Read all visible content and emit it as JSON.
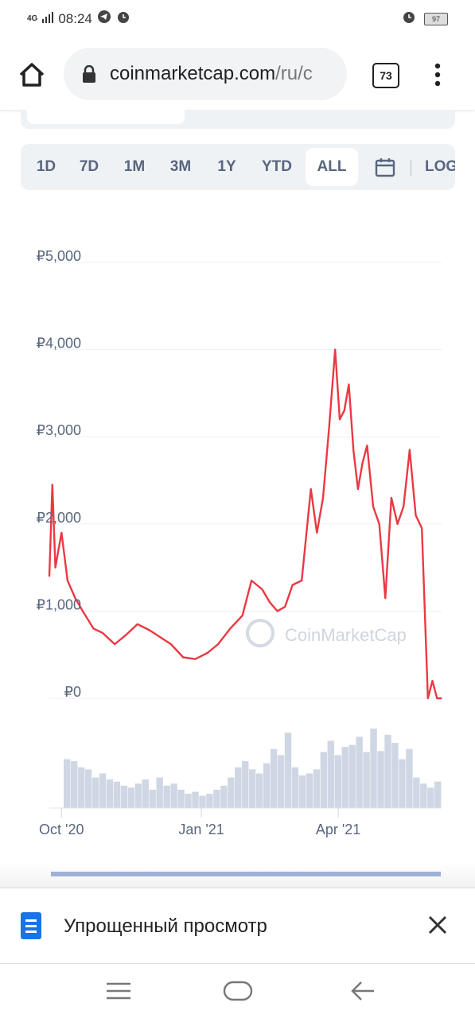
{
  "status_bar": {
    "network": "4G",
    "time": "08:24",
    "battery": "97"
  },
  "browser": {
    "url_main": "coinmarketcap.com",
    "url_path": "/ru/c",
    "tab_count": "73"
  },
  "range_buttons": [
    "1D",
    "7D",
    "1M",
    "3M",
    "1Y",
    "YTD",
    "ALL",
    "LOG"
  ],
  "active_range": "ALL",
  "watermark": "CoinMarketCap",
  "chart_data": {
    "type": "line",
    "y_ticks": [
      "₽5,000",
      "₽4,000",
      "₽3,000",
      "₽2,000",
      "₽1,000",
      "₽0"
    ],
    "x_ticks": [
      "Oct '20",
      "Jan '21",
      "Apr '21"
    ],
    "ylim": [
      0,
      5000
    ],
    "color": "#ea3943",
    "volume_color": "#cfd6e4",
    "series": [
      {
        "x": [
          "2020-09-23",
          "2020-09-25",
          "2020-09-27",
          "2020-10-01",
          "2020-10-05",
          "2020-10-10",
          "2020-10-15",
          "2020-10-22",
          "2020-10-28",
          "2020-11-05",
          "2020-11-12",
          "2020-11-20",
          "2020-11-28",
          "2020-12-05",
          "2020-12-12",
          "2020-12-20",
          "2020-12-28",
          "2021-01-05",
          "2021-01-12",
          "2021-01-20",
          "2021-01-28",
          "2021-02-03",
          "2021-02-10",
          "2021-02-15",
          "2021-02-20",
          "2021-02-25",
          "2021-03-02",
          "2021-03-08",
          "2021-03-14",
          "2021-03-18",
          "2021-03-22",
          "2021-03-26",
          "2021-03-30",
          "2021-04-02",
          "2021-04-05",
          "2021-04-08",
          "2021-04-11",
          "2021-04-14",
          "2021-04-17",
          "2021-04-20",
          "2021-04-24",
          "2021-04-28",
          "2021-05-02",
          "2021-05-06",
          "2021-05-10",
          "2021-05-14",
          "2021-05-18",
          "2021-05-22",
          "2021-05-26",
          "2021-05-30",
          "2021-06-02",
          "2021-06-05",
          "2021-06-08"
        ],
        "y": [
          1400,
          2450,
          1500,
          1900,
          1350,
          1150,
          1000,
          800,
          750,
          620,
          720,
          850,
          780,
          700,
          620,
          470,
          450,
          520,
          620,
          800,
          950,
          1350,
          1250,
          1100,
          1000,
          1050,
          1300,
          1350,
          2400,
          1900,
          2300,
          3100,
          4000,
          3200,
          3300,
          3600,
          2850,
          2400,
          2700,
          2900,
          2200,
          2000,
          1150,
          2300,
          2000,
          2200,
          2850,
          2100,
          1950,
          0,
          200,
          0,
          0
        ]
      }
    ],
    "volume_relative": [
      0.48,
      0.46,
      0.4,
      0.38,
      0.3,
      0.34,
      0.28,
      0.26,
      0.22,
      0.2,
      0.24,
      0.28,
      0.18,
      0.3,
      0.22,
      0.24,
      0.18,
      0.14,
      0.16,
      0.12,
      0.14,
      0.18,
      0.22,
      0.3,
      0.4,
      0.46,
      0.38,
      0.34,
      0.44,
      0.58,
      0.52,
      0.74,
      0.4,
      0.32,
      0.34,
      0.38,
      0.55,
      0.66,
      0.52,
      0.6,
      0.62,
      0.7,
      0.55,
      0.78,
      0.56,
      0.72,
      0.64,
      0.48,
      0.58,
      0.3,
      0.24,
      0.2,
      0.26
    ]
  },
  "bottom_bar": {
    "simplified_view": "Упрощенный просмотр"
  }
}
